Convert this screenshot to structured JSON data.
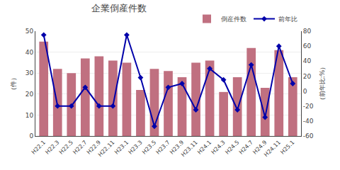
{
  "chart_data": {
    "type": "bar",
    "title": "企業倒産件数",
    "ylabel": "（件）",
    "y2label": "（前年比:%）",
    "categories": [
      "H22.1",
      "H22.3",
      "H22.5",
      "H22.7",
      "H22.9",
      "H22.11",
      "H23.1",
      "H23.3",
      "H23.5",
      "H23.7",
      "H23.9",
      "H23.11",
      "H24.1",
      "H24.3",
      "H24.5",
      "H24.7",
      "H24.9",
      "H24.11",
      "H25.1"
    ],
    "series": [
      {
        "name": "倒産件数",
        "type": "bar",
        "color": "#c07080",
        "values": [
          45,
          32,
          30,
          37,
          38,
          36,
          35,
          22,
          32,
          31,
          28,
          35,
          36,
          21,
          28,
          42,
          23,
          41,
          28
        ]
      },
      {
        "name": "前年比",
        "type": "line",
        "color": "#0000aa",
        "marker": "diamond",
        "axis": "y2",
        "values": [
          75,
          -20,
          -20,
          5,
          -20,
          -20,
          75,
          18,
          -47,
          5,
          10,
          -25,
          30,
          15,
          -25,
          35,
          -35,
          60,
          10
        ]
      }
    ],
    "ylim": [
      0,
      50
    ],
    "yticks": [
      0,
      10,
      20,
      30,
      40,
      50
    ],
    "y2lim": [
      -60,
      80
    ],
    "y2ticks": [
      80,
      60,
      40,
      20,
      0,
      -20,
      -40,
      -60
    ],
    "grid": true,
    "legend": "upper right"
  }
}
